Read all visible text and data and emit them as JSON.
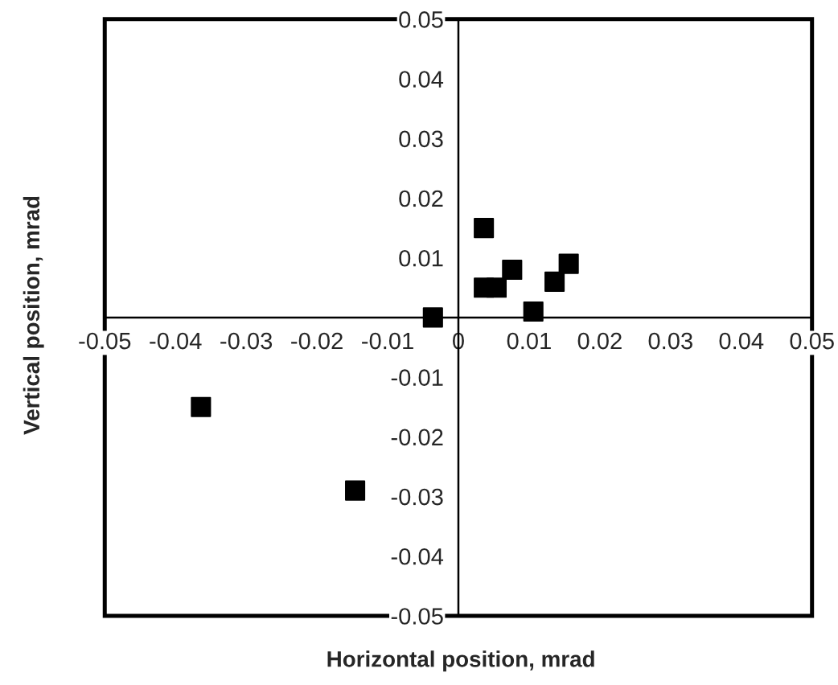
{
  "chart_data": {
    "type": "scatter",
    "xlabel": "Horizontal position, mrad",
    "ylabel": "Vertical position, mrad",
    "x": [
      -0.0036,
      0.0036,
      0.0036,
      0.0054,
      0.0076,
      0.0106,
      0.0136,
      0.0156,
      -0.0364,
      -0.0146
    ],
    "values": [
      0,
      0.015,
      0.005,
      0.005,
      0.008,
      0.001,
      0.006,
      0.009,
      -0.015,
      -0.029
    ],
    "color": "#000000",
    "marker": "square",
    "grid": false,
    "legend": false,
    "xlim": [
      -0.05,
      0.05
    ],
    "ylim": [
      -0.05,
      0.05
    ],
    "xticks": [
      -0.05,
      -0.04,
      -0.03,
      -0.02,
      -0.01,
      0,
      0.01,
      0.02,
      0.03,
      0.04,
      0.05
    ],
    "yticks": [
      -0.05,
      -0.04,
      -0.03,
      -0.02,
      -0.01,
      0.01,
      0.02,
      0.03,
      0.04,
      0.05
    ]
  }
}
